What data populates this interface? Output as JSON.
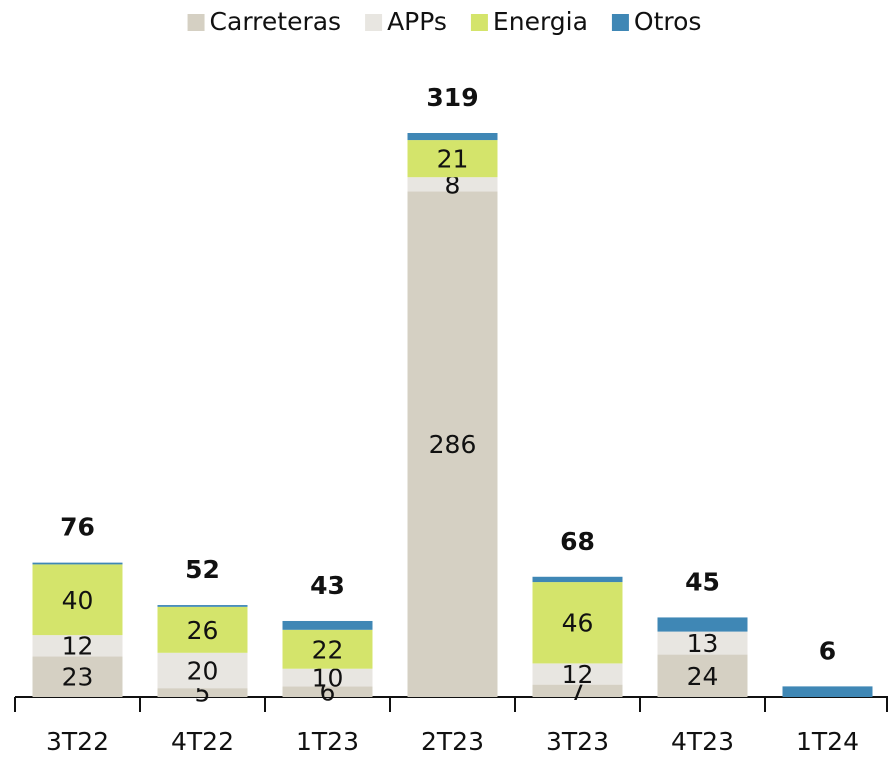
{
  "chart_data": {
    "type": "stacked_bar",
    "categories": [
      "3T22",
      "4T22",
      "1T23",
      "2T23",
      "3T23",
      "4T23",
      "1T24"
    ],
    "series": [
      {
        "name": "Carreteras",
        "color": "#d5d0c3",
        "values": [
          23,
          5,
          6,
          286,
          7,
          24,
          0
        ],
        "show_labels": true
      },
      {
        "name": "APPs",
        "color": "#e8e6e1",
        "values": [
          12,
          20,
          10,
          8,
          12,
          13,
          0
        ],
        "show_labels": true
      },
      {
        "name": "Energia",
        "color": "#d4e46b",
        "values": [
          40,
          26,
          22,
          21,
          46,
          0,
          0
        ],
        "show_labels": true
      },
      {
        "name": "Otros",
        "color": "#3f87b5",
        "values": [
          1,
          1,
          5,
          4,
          3,
          8,
          6
        ],
        "show_labels": false
      }
    ],
    "totals": [
      76,
      52,
      43,
      319,
      68,
      45,
      6
    ],
    "ylim": [
      0,
      319
    ],
    "legend": "top"
  }
}
